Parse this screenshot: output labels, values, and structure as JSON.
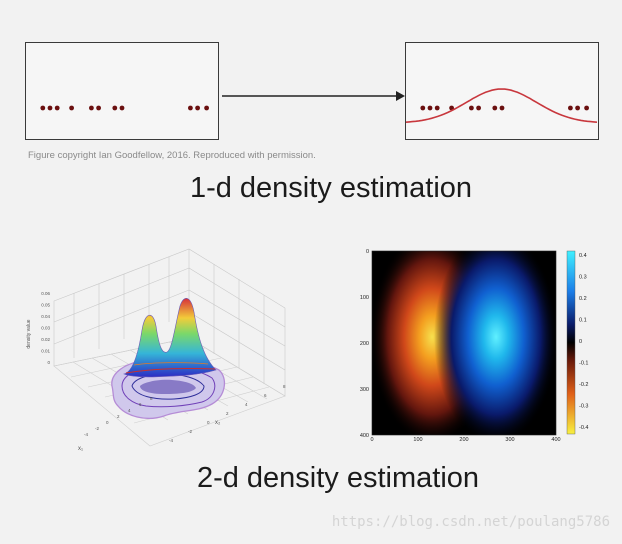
{
  "copyright": "Figure copyright Ian Goodfellow, 2016. Reproduced with permission.",
  "heading_1d": "1-d density estimation",
  "heading_2d": "2-d density estimation",
  "watermark": "https://blog.csdn.net/poulang5786",
  "colors": {
    "point": "#6b1010",
    "curve": "#c8373d",
    "panel_border": "#3a3a3a"
  },
  "samples_1d": [
    0.06,
    0.1,
    0.14,
    0.22,
    0.33,
    0.37,
    0.46,
    0.5,
    0.88,
    0.92,
    0.97
  ],
  "surface_plot": {
    "zlabel": "density value",
    "z_ticks": [
      "0.06",
      "0.05",
      "0.04",
      "0.03",
      "0.02",
      "0.01",
      "0"
    ],
    "x_ticks": [
      "-4",
      "-2",
      "0",
      "2",
      "4",
      "6",
      "8"
    ],
    "y_ticks": [
      "-4",
      "-2",
      "0",
      "2",
      "4",
      "6",
      "8"
    ],
    "xlabel": "x₁",
    "ylabel": "x₂"
  },
  "heatmap": {
    "x_ticks": [
      "0",
      "100",
      "200",
      "300",
      "400"
    ],
    "y_ticks": [
      "0",
      "100",
      "200",
      "300",
      "400"
    ],
    "colorbar_ticks": [
      "0.4",
      "0.3",
      "0.2",
      "0.1",
      "0",
      "-0.1",
      "-0.2",
      "-0.3",
      "-0.4"
    ]
  }
}
